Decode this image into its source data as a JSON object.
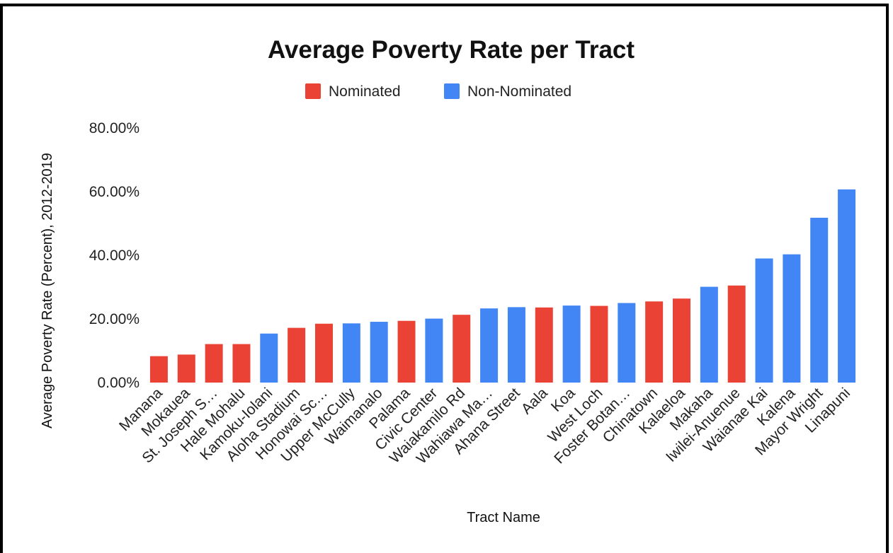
{
  "chart_data": {
    "type": "bar",
    "title": "Average Poverty Rate per Tract",
    "xlabel": "Tract Name",
    "ylabel": "Average Poverty Rate (Percent), 2012-2019",
    "ylim": [
      0,
      80
    ],
    "yticks": [
      "0.00%",
      "20.00%",
      "40.00%",
      "60.00%",
      "80.00%"
    ],
    "ytick_values": [
      0,
      20,
      40,
      60,
      80
    ],
    "grid": false,
    "legend": {
      "position": "top-center",
      "items": [
        {
          "label": "Nominated",
          "color": "#ea4335"
        },
        {
          "label": "Non-Nominated",
          "color": "#4285f4"
        }
      ]
    },
    "categories": [
      "Manana",
      "Mokauea",
      "St. Joseph S…",
      "Hale Mohalu",
      "Kamoku-Iolani",
      "Aloha Stadium",
      "Honowai Sc…",
      "Upper McCully",
      "Waimanalo",
      "Palama",
      "Civic Center",
      "Waiakamilo Rd",
      "Wahiawa Ma…",
      "Ahana Street",
      "Aala",
      "Koa",
      "West Loch",
      "Foster Botan…",
      "Chinatown",
      "Kalaeloa",
      "Makaha",
      "Iwilei-Anuenue",
      "Waianae Kai",
      "Kalena",
      "Mayor Wright",
      "Linapuni"
    ],
    "values": [
      8.3,
      8.8,
      12.1,
      12.1,
      15.4,
      17.2,
      18.5,
      18.6,
      19.1,
      19.4,
      20.1,
      21.3,
      23.3,
      23.7,
      23.6,
      24.2,
      24.1,
      25.0,
      25.5,
      26.4,
      30.1,
      30.5,
      39.0,
      40.3,
      51.8,
      60.7
    ],
    "groups": [
      "Nominated",
      "Nominated",
      "Nominated",
      "Nominated",
      "Non-Nominated",
      "Nominated",
      "Nominated",
      "Non-Nominated",
      "Non-Nominated",
      "Nominated",
      "Non-Nominated",
      "Nominated",
      "Non-Nominated",
      "Non-Nominated",
      "Nominated",
      "Non-Nominated",
      "Nominated",
      "Non-Nominated",
      "Nominated",
      "Nominated",
      "Non-Nominated",
      "Nominated",
      "Non-Nominated",
      "Non-Nominated",
      "Non-Nominated",
      "Non-Nominated"
    ]
  }
}
